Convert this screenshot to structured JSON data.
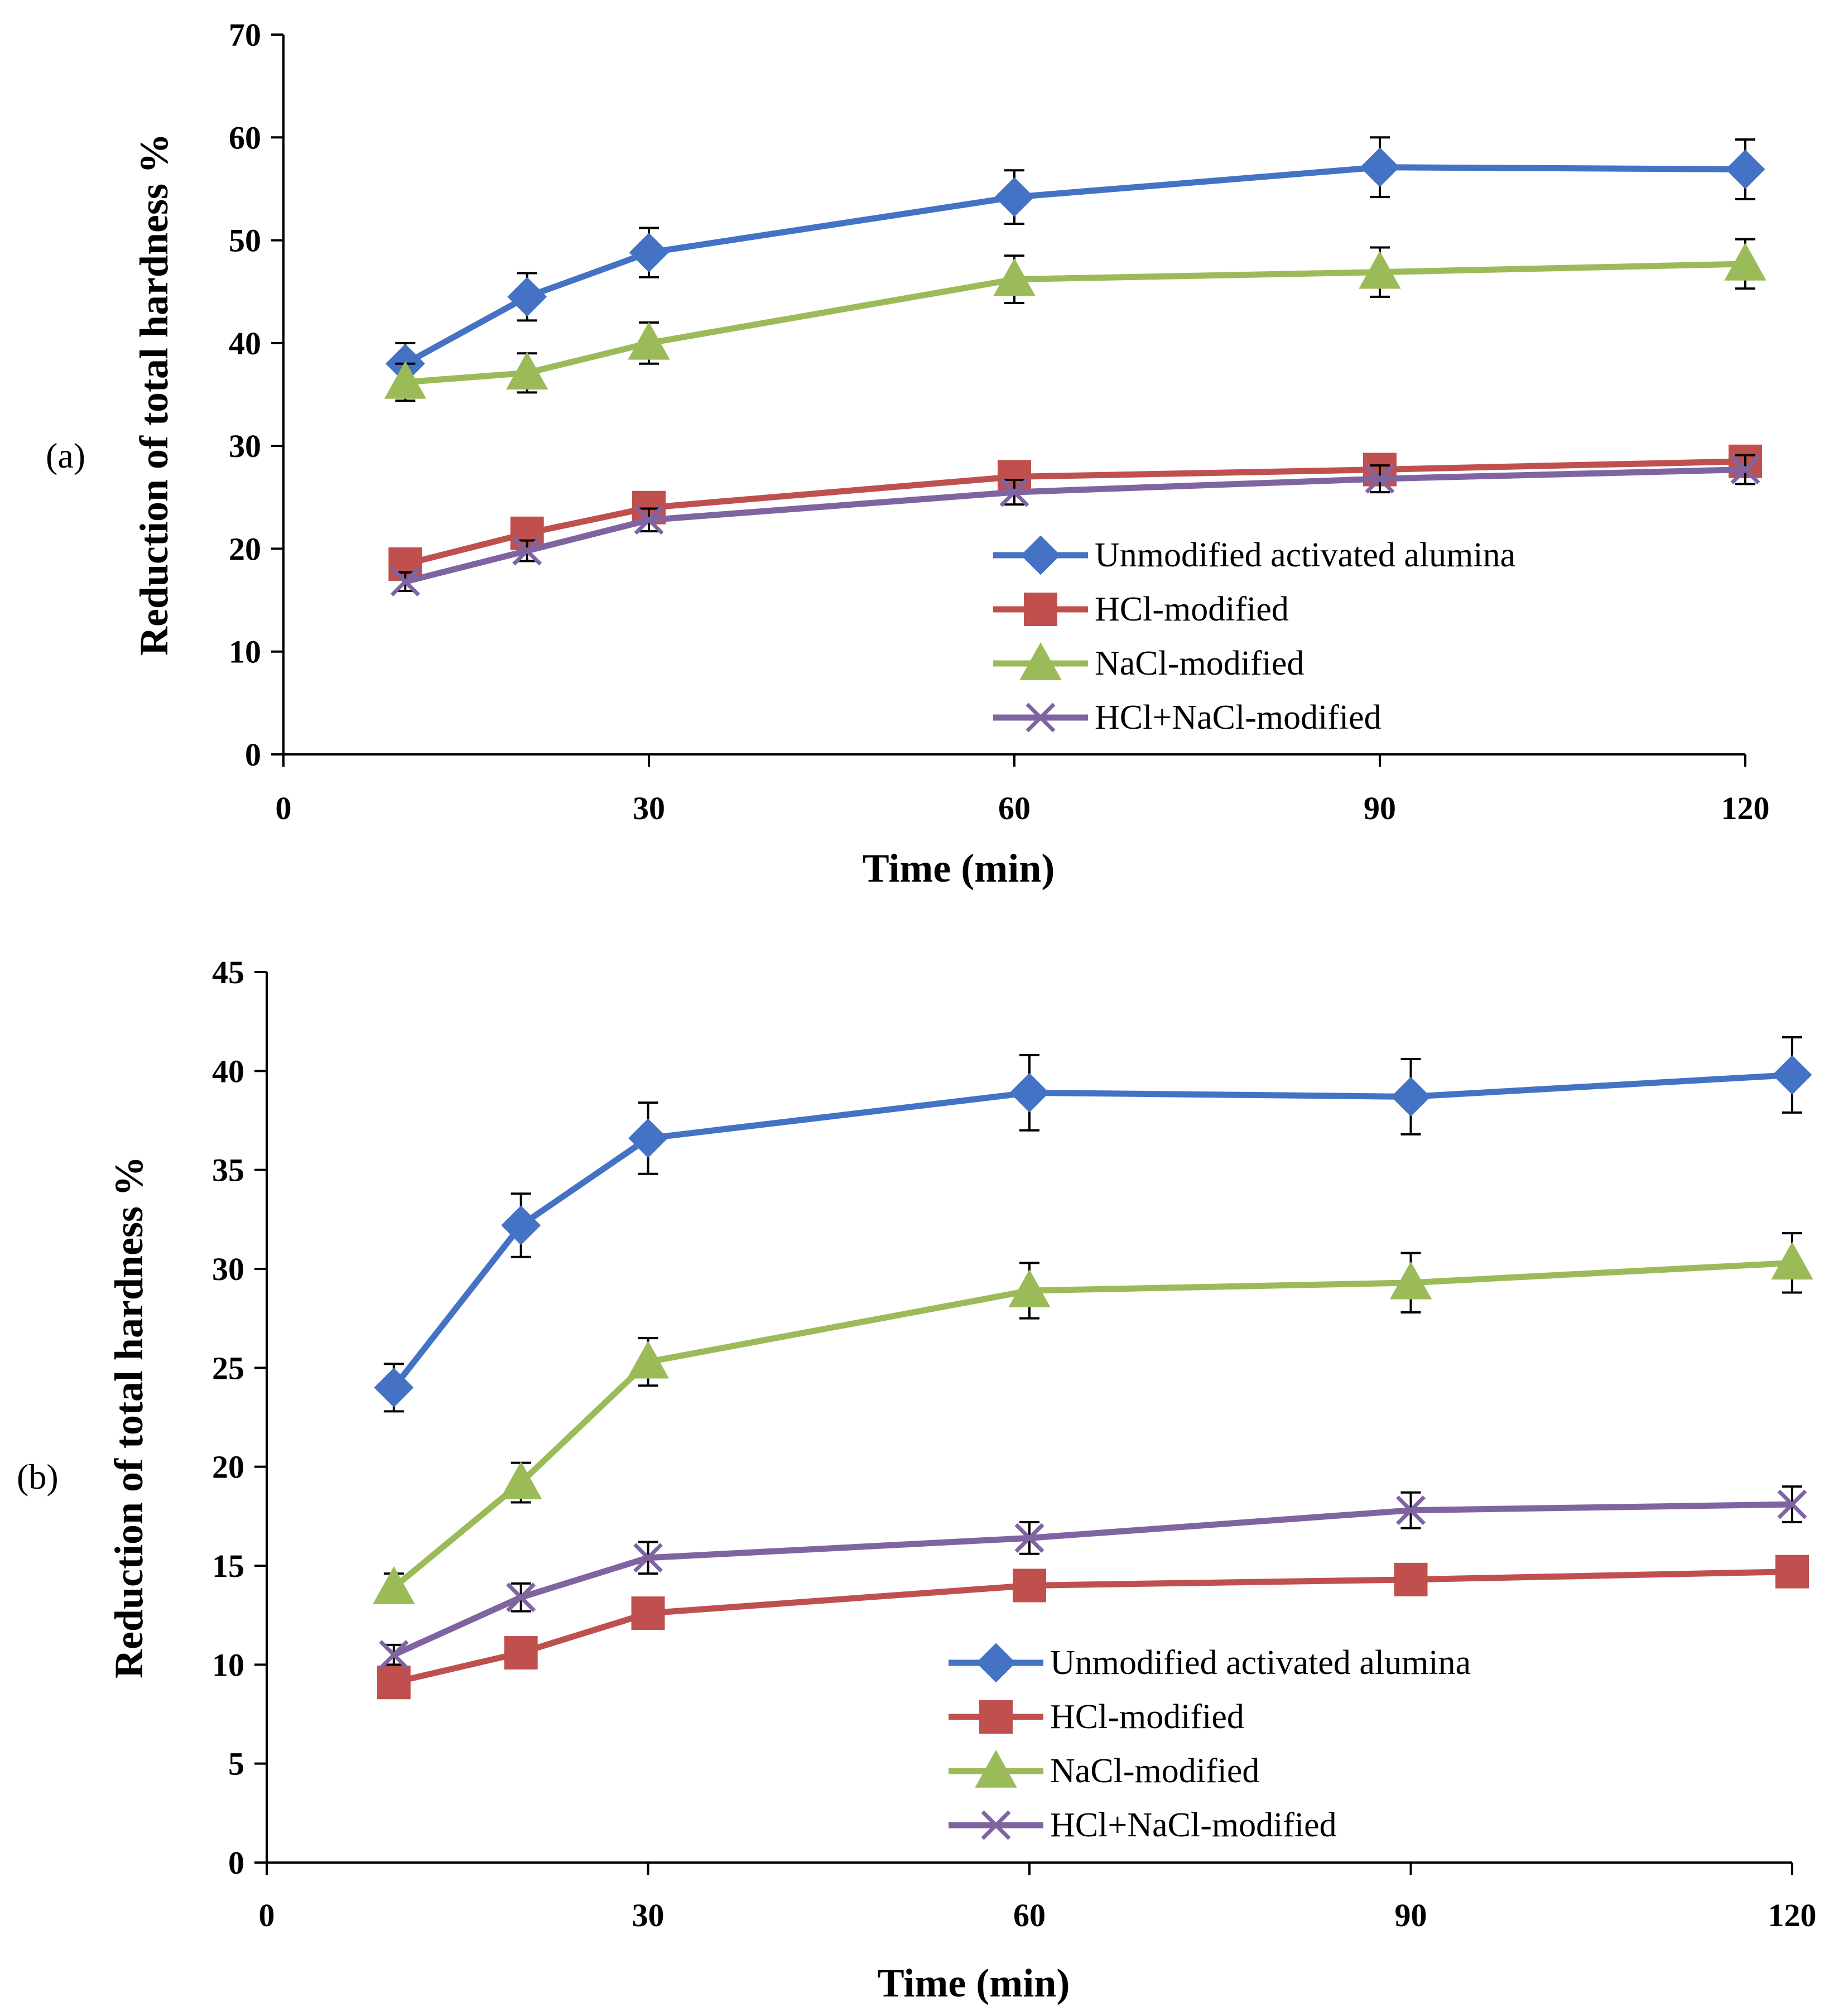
{
  "chart_data": [
    {
      "type": "line",
      "panel_label": "(a)",
      "xlabel": "Time (min)",
      "ylabel": "Reduction of total hardness %",
      "xlim": [
        0,
        120
      ],
      "ylim": [
        0,
        70
      ],
      "x_ticks": [
        0,
        30,
        60,
        90,
        120
      ],
      "y_ticks": [
        0,
        10,
        20,
        30,
        40,
        50,
        60,
        70
      ],
      "x": [
        10,
        20,
        30,
        60,
        90,
        120
      ],
      "legend_position": "bottom-right",
      "grid": false,
      "series": [
        {
          "name": "Unmodified activated alumina",
          "color": "#4472C4",
          "marker": "diamond",
          "values": [
            38.0,
            44.5,
            48.8,
            54.2,
            57.1,
            56.9
          ],
          "error": [
            2.0,
            2.3,
            2.4,
            2.6,
            2.9,
            2.9
          ]
        },
        {
          "name": "HCl-modified",
          "color": "#C0504D",
          "marker": "square",
          "values": [
            18.5,
            21.5,
            24.0,
            27.0,
            27.7,
            28.5
          ],
          "error": [
            1.0,
            1.1,
            1.2,
            1.3,
            1.4,
            1.5
          ]
        },
        {
          "name": "NaCl-modified",
          "color": "#9BBB59",
          "marker": "triangle",
          "values": [
            36.2,
            37.1,
            40.0,
            46.2,
            46.9,
            47.7
          ],
          "error": [
            1.8,
            1.9,
            2.0,
            2.3,
            2.4,
            2.4
          ]
        },
        {
          "name": "HCl+NaCl-modified",
          "color": "#8064A2",
          "marker": "x",
          "values": [
            16.8,
            19.8,
            22.8,
            25.5,
            26.8,
            27.7
          ],
          "error": [
            0.9,
            1.0,
            1.1,
            1.2,
            1.3,
            1.4
          ]
        }
      ]
    },
    {
      "type": "line",
      "panel_label": "(b)",
      "xlabel": "Time (min)",
      "ylabel": "Reduction of total hardness %",
      "xlim": [
        0,
        120
      ],
      "ylim": [
        0,
        45
      ],
      "x_ticks": [
        0,
        30,
        60,
        90,
        120
      ],
      "y_ticks": [
        0,
        5,
        10,
        15,
        20,
        25,
        30,
        35,
        40,
        45
      ],
      "x": [
        10,
        20,
        30,
        60,
        90,
        120
      ],
      "legend_position": "bottom-right",
      "grid": false,
      "series": [
        {
          "name": "Unmodified activated alumina",
          "color": "#4472C4",
          "marker": "diamond",
          "values": [
            24.0,
            32.2,
            36.6,
            38.9,
            38.7,
            39.8
          ],
          "error": [
            1.2,
            1.6,
            1.8,
            1.9,
            1.9,
            1.9
          ]
        },
        {
          "name": "HCl-modified",
          "color": "#C0504D",
          "marker": "square",
          "values": [
            9.1,
            10.6,
            12.6,
            14.0,
            14.3,
            14.7
          ],
          "error": [
            0.5,
            0.5,
            0.6,
            0.7,
            0.7,
            0.7
          ]
        },
        {
          "name": "NaCl-modified",
          "color": "#9BBB59",
          "marker": "triangle",
          "values": [
            13.9,
            19.2,
            25.3,
            28.9,
            29.3,
            30.3
          ],
          "error": [
            0.7,
            1.0,
            1.2,
            1.4,
            1.5,
            1.5
          ]
        },
        {
          "name": "HCl+NaCl-modified",
          "color": "#8064A2",
          "marker": "x",
          "values": [
            10.5,
            13.4,
            15.4,
            16.4,
            17.8,
            18.1
          ],
          "error": [
            0.5,
            0.7,
            0.8,
            0.8,
            0.9,
            0.9
          ]
        }
      ]
    }
  ]
}
